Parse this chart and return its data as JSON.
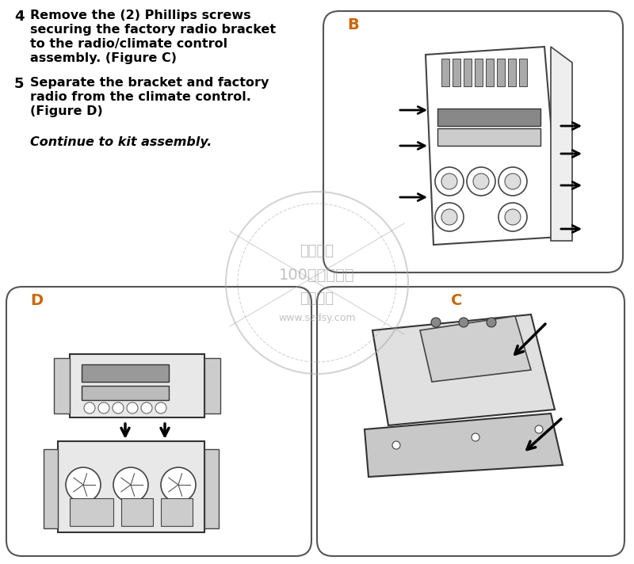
{
  "bg_color": "#ffffff",
  "text_color": "#000000",
  "step4_number": "4",
  "step4_text_line1": "Remove the (2) Phillips screws",
  "step4_text_line2": "securing the factory radio bracket",
  "step4_text_line3": "to the radio/climate control",
  "step4_text_line4": "assembly. (Figure C)",
  "step5_number": "5",
  "step5_text_line1": "Separate the bracket and factory",
  "step5_text_line2": "radio from the climate control.",
  "step5_text_line3": "(Figure D)",
  "continue_text": "Continue to kit assembly.",
  "fig_B_label": "B",
  "fig_D_label": "D",
  "fig_C_label": "C",
  "watermark_line1": "汽车买卖",
  "watermark_line2": "100元买战拍场",
  "watermark_line3": "包图定制",
  "watermark_url": "www.szdsy.com",
  "outline_color": "#333333",
  "figure_bg": "#f8f8f8"
}
